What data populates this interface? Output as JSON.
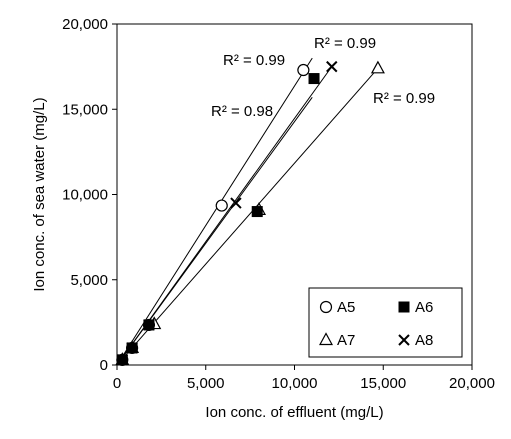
{
  "chart_data": {
    "type": "scatter",
    "xlabel": "Ion conc. of effluent (mg/L)",
    "ylabel": "Ion conc. of sea water (mg/L)",
    "xlim": [
      0,
      20000
    ],
    "ylim": [
      0,
      20000
    ],
    "x_ticks": [
      "0",
      "5,000",
      "10,000",
      "15,000",
      "20,000"
    ],
    "y_ticks": [
      "0",
      "5,000",
      "10,000",
      "15,000",
      "20,000"
    ],
    "x_tick_values": [
      0,
      5000,
      10000,
      15000,
      20000
    ],
    "y_tick_values": [
      0,
      5000,
      10000,
      15000,
      20000
    ],
    "grid": false,
    "legend_position": "bottom-right",
    "series": [
      {
        "name": "A5",
        "marker": "open-circle",
        "r2_label": "R² = 0.99",
        "points": [
          [
            300,
            300
          ],
          [
            850,
            1000
          ],
          [
            1800,
            2350
          ],
          [
            5900,
            9350
          ],
          [
            10500,
            17300
          ]
        ],
        "trend": [
          [
            0,
            0
          ],
          [
            11000,
            18000
          ]
        ]
      },
      {
        "name": "A6",
        "marker": "filled-square",
        "r2_label": "R² = 0.98",
        "points": [
          [
            300,
            300
          ],
          [
            850,
            1000
          ],
          [
            1800,
            2350
          ],
          [
            7900,
            9000
          ],
          [
            11100,
            16800
          ]
        ],
        "trend": [
          [
            0,
            0
          ],
          [
            11000,
            15700
          ]
        ]
      },
      {
        "name": "A7",
        "marker": "open-triangle",
        "r2_label": "R² = 0.99",
        "points": [
          [
            300,
            300
          ],
          [
            850,
            1000
          ],
          [
            2100,
            2400
          ],
          [
            8000,
            9100
          ],
          [
            14700,
            17400
          ]
        ],
        "trend": [
          [
            0,
            0
          ],
          [
            14700,
            17400
          ]
        ]
      },
      {
        "name": "A8",
        "marker": "x",
        "r2_label": "R² = 0.99",
        "points": [
          [
            300,
            300
          ],
          [
            850,
            1000
          ],
          [
            1800,
            2350
          ],
          [
            6700,
            9500
          ],
          [
            12100,
            17500
          ]
        ],
        "trend": [
          [
            0,
            0
          ],
          [
            12100,
            17500
          ]
        ]
      }
    ]
  }
}
